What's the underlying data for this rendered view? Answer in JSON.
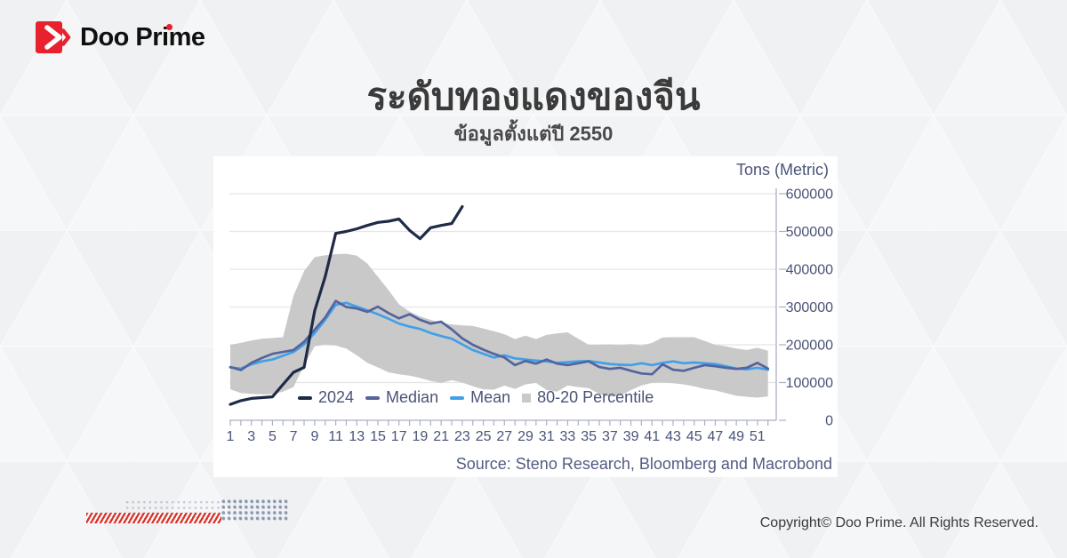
{
  "header": {
    "logo_text": "Doo Prime"
  },
  "title": "ระดับทองแดงของจีน",
  "subtitle": "ข้อมูลตั้งแต่ปี 2550",
  "footer": {
    "copyright": "Copyright© Doo Prime. All Rights Reserved."
  },
  "colors": {
    "navy_2024": "#1f2a47",
    "median": "#54649c",
    "mean": "#41a0ea",
    "band": "#c9c9c9",
    "axis_text": "#4a5378",
    "brand_red": "#e8212e"
  },
  "chart_data": {
    "type": "line",
    "unit_label": "Tons (Metric)",
    "source": "Source: Steno Research, Bloomberg and Macrobond",
    "ylim": [
      0,
      600000
    ],
    "y_ticks": [
      0,
      100000,
      200000,
      300000,
      400000,
      500000,
      600000
    ],
    "x": [
      1,
      2,
      3,
      4,
      5,
      6,
      7,
      8,
      9,
      10,
      11,
      12,
      13,
      14,
      15,
      16,
      17,
      18,
      19,
      20,
      21,
      22,
      23,
      24,
      25,
      26,
      27,
      28,
      29,
      30,
      31,
      32,
      33,
      34,
      35,
      36,
      37,
      38,
      39,
      40,
      41,
      42,
      43,
      44,
      45,
      46,
      47,
      48,
      49,
      50,
      51,
      52
    ],
    "x_tick_labels": [
      "1",
      "3",
      "5",
      "7",
      "9",
      "11",
      "13",
      "15",
      "17",
      "19",
      "21",
      "23",
      "25",
      "27",
      "29",
      "31",
      "33",
      "35",
      "37",
      "39",
      "41",
      "43",
      "45",
      "47",
      "49",
      "51"
    ],
    "series": [
      {
        "name": "2024",
        "color": "#1f2a47",
        "values": [
          42000,
          52000,
          58000,
          60000,
          62000,
          95000,
          127000,
          140000,
          290000,
          380000,
          495000,
          500000,
          507000,
          516000,
          524000,
          527000,
          533000,
          503000,
          481000,
          510000,
          516000,
          521000,
          566000
        ]
      },
      {
        "name": "Median",
        "color": "#54649c",
        "values": [
          141000,
          133000,
          152000,
          165000,
          176000,
          181000,
          186000,
          208000,
          240000,
          272000,
          316000,
          300000,
          296000,
          287000,
          301000,
          284000,
          270000,
          281000,
          266000,
          256000,
          261000,
          241000,
          217000,
          200000,
          187000,
          176000,
          166000,
          146000,
          157000,
          150000,
          161000,
          150000,
          146000,
          151000,
          156000,
          141000,
          136000,
          139000,
          131000,
          124000,
          122000,
          148000,
          134000,
          131000,
          139000,
          146000,
          143000,
          139000,
          136000,
          139000,
          152000,
          137000
        ]
      },
      {
        "name": "Mean",
        "color": "#41a0ea",
        "values": [
          140000,
          137000,
          148000,
          156000,
          161000,
          171000,
          181000,
          201000,
          231000,
          266000,
          306000,
          311000,
          301000,
          291000,
          281000,
          269000,
          256000,
          248000,
          242000,
          231000,
          223000,
          216000,
          201000,
          186000,
          176000,
          166000,
          172000,
          164000,
          161000,
          158000,
          156000,
          152000,
          154000,
          156000,
          157000,
          153000,
          149000,
          147000,
          146000,
          151000,
          146000,
          152000,
          156000,
          151000,
          153000,
          151000,
          149000,
          143000,
          137000,
          135000,
          139000,
          134000
        ]
      }
    ],
    "band": {
      "name": "80-20 Percentile",
      "color": "#c9c9c9",
      "upper": [
        200000,
        205000,
        211000,
        216000,
        218000,
        220000,
        330000,
        395000,
        432000,
        437000,
        440000,
        441000,
        436000,
        415000,
        380000,
        345000,
        307000,
        288000,
        275000,
        266000,
        258000,
        254000,
        251000,
        250000,
        243000,
        236000,
        228000,
        215000,
        224000,
        215000,
        226000,
        230000,
        233000,
        216000,
        200000,
        200000,
        201000,
        199000,
        202000,
        198000,
        205000,
        219000,
        220000,
        220000,
        220000,
        210000,
        200000,
        196000,
        190000,
        186000,
        192000,
        184000
      ],
      "lower": [
        82000,
        72000,
        70000,
        69000,
        69000,
        76000,
        88000,
        146000,
        196000,
        200000,
        198000,
        190000,
        172000,
        152000,
        140000,
        127000,
        122000,
        118000,
        112000,
        104000,
        99000,
        106000,
        100000,
        90000,
        82000,
        81000,
        92000,
        83000,
        95000,
        99000,
        80000,
        76000,
        92000,
        88000,
        85000,
        70000,
        62000,
        65000,
        80000,
        92000,
        99000,
        100000,
        98000,
        95000,
        90000,
        83000,
        79000,
        72000,
        65000,
        62000,
        60000,
        63000
      ]
    },
    "legend": [
      {
        "label": "2024",
        "color": "#1f2a47",
        "type": "line"
      },
      {
        "label": "Median",
        "color": "#54649c",
        "type": "line"
      },
      {
        "label": "Mean",
        "color": "#41a0ea",
        "type": "line"
      },
      {
        "label": "80-20 Percentile",
        "color": "#c9c9c9",
        "type": "square"
      }
    ]
  }
}
